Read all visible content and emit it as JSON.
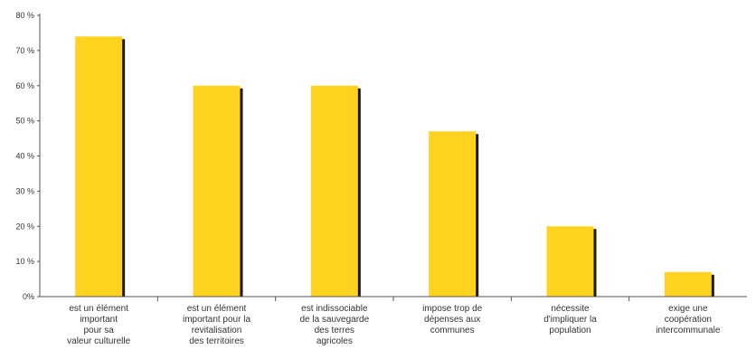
{
  "chart_data": {
    "type": "bar",
    "categories": [
      [
        "est un élément",
        "important",
        "pour sa",
        "valeur culturelle"
      ],
      [
        "est un élément",
        "important pour la",
        "revitalisation",
        "des territoires"
      ],
      [
        "est indissociable",
        "de la sauvegarde",
        "des terres",
        "agricoles"
      ],
      [
        "impose trop de",
        "dépenses aux",
        "communes"
      ],
      [
        "nécessite",
        "d'impliquer la",
        "population"
      ],
      [
        "exige une",
        "coopération",
        "intercommunale"
      ]
    ],
    "values": [
      74,
      60,
      60,
      47,
      20,
      7
    ],
    "yticks": [
      "0%",
      "10 %",
      "20 %",
      "30 %",
      "40 %",
      "50 %",
      "60 %",
      "70 %",
      "80 %"
    ],
    "ylim": [
      0,
      80
    ],
    "grid": false,
    "colors": {
      "bar": "#ffd21f",
      "shadow": "#1a1a1a",
      "axis": "#555555"
    }
  }
}
